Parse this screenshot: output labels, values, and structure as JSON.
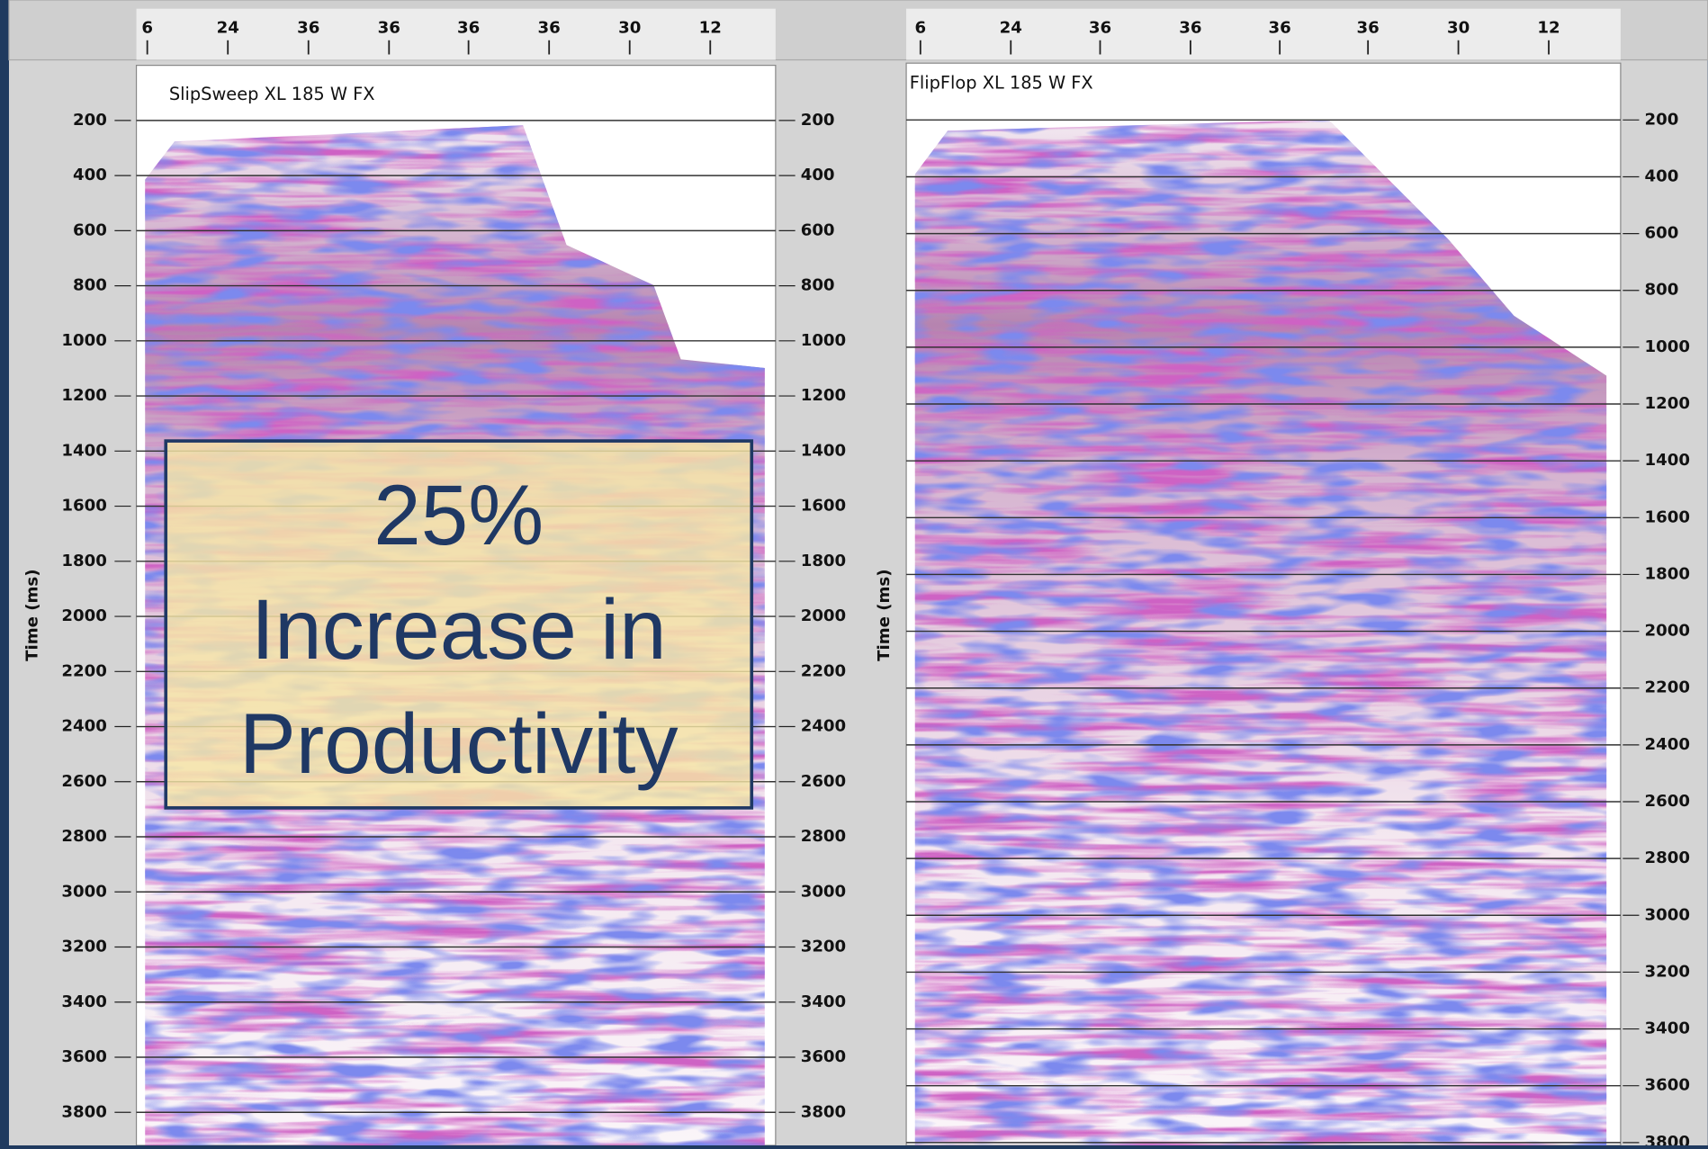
{
  "panels": [
    {
      "title": "SlipSweep XL 185 W FX",
      "y_label": "Time (ms)",
      "top_labels": [
        "6",
        "24",
        "36",
        "36",
        "36",
        "36",
        "30",
        "12"
      ],
      "ylim": [
        0,
        3920
      ],
      "yticks": [
        200,
        400,
        600,
        800,
        1000,
        1200,
        1400,
        1600,
        1800,
        2000,
        2200,
        2400,
        2600,
        2800,
        3000,
        3200,
        3400,
        3600,
        3800
      ]
    },
    {
      "title": "FlipFlop XL 185 W FX",
      "y_label": "Time (ms)",
      "top_labels": [
        "6",
        "24",
        "36",
        "36",
        "36",
        "36",
        "30",
        "12"
      ],
      "ylim": [
        0,
        3810
      ],
      "yticks": [
        200,
        400,
        600,
        800,
        1000,
        1200,
        1400,
        1600,
        1800,
        2000,
        2200,
        2400,
        2600,
        2800,
        3000,
        3200,
        3400,
        3600,
        3800
      ]
    }
  ],
  "overlay": {
    "lines": [
      "25%",
      "Increase in",
      "Productivity"
    ]
  }
}
